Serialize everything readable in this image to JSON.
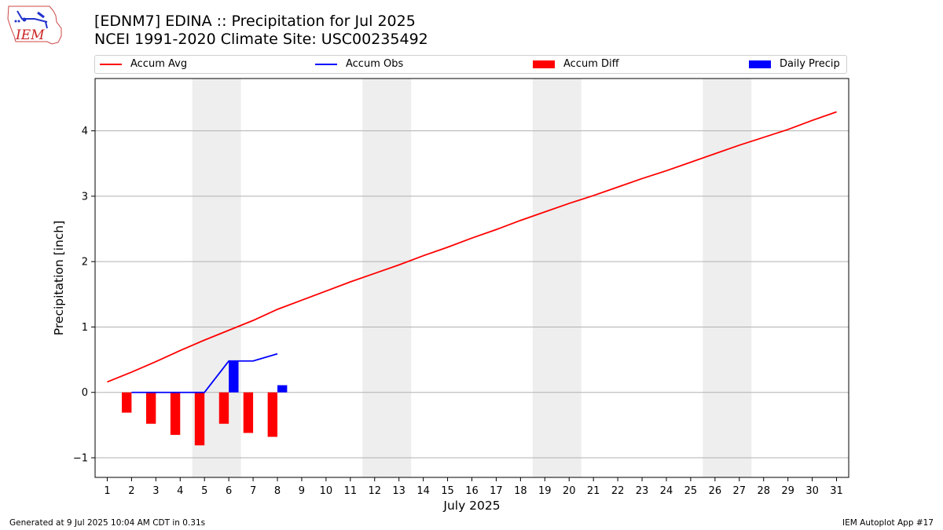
{
  "header": {
    "title_line1": "[EDNM7] EDINA :: Precipitation for Jul 2025",
    "title_line2": "NCEI 1991-2020 Climate Site: USC00235492",
    "logo_text": "IEM"
  },
  "legend": {
    "items": [
      {
        "label": "Accum Avg",
        "color": "#ff0000",
        "kind": "line"
      },
      {
        "label": "Accum Obs",
        "color": "#0000ff",
        "kind": "line"
      },
      {
        "label": "Accum Diff",
        "color": "#ff0000",
        "kind": "box"
      },
      {
        "label": "Daily Precip",
        "color": "#0000ff",
        "kind": "box"
      }
    ]
  },
  "footer": {
    "left": "Generated at 9 Jul 2025 10:04 AM CDT in 0.31s",
    "right": "IEM Autoplot App #17"
  },
  "chart_data": {
    "type": "line",
    "xlabel": "July 2025",
    "ylabel": "Precipitation [inch]",
    "xlim": [
      0.5,
      31.5
    ],
    "ylim": [
      -1.3,
      4.8
    ],
    "yticks": [
      -1,
      0,
      1,
      2,
      3,
      4
    ],
    "ytick_labels": [
      "−1",
      "0",
      "1",
      "2",
      "3",
      "4"
    ],
    "xticks": [
      1,
      2,
      3,
      4,
      5,
      6,
      7,
      8,
      9,
      10,
      11,
      12,
      13,
      14,
      15,
      16,
      17,
      18,
      19,
      20,
      21,
      22,
      23,
      24,
      25,
      26,
      27,
      28,
      29,
      30,
      31
    ],
    "grid": "y",
    "legend_placement": "top",
    "weekend_shading": [
      [
        4.5,
        6.5
      ],
      [
        11.5,
        13.5
      ],
      [
        18.5,
        20.5
      ],
      [
        25.5,
        27.5
      ]
    ],
    "series": [
      {
        "name": "Accum Avg",
        "color": "#ff0000",
        "kind": "line",
        "x": [
          1,
          2,
          3,
          4,
          5,
          6,
          7,
          8,
          9,
          10,
          11,
          12,
          13,
          14,
          15,
          16,
          17,
          18,
          19,
          20,
          21,
          22,
          23,
          24,
          25,
          26,
          27,
          28,
          29,
          30,
          31
        ],
        "values": [
          0.16,
          0.31,
          0.47,
          0.64,
          0.8,
          0.95,
          1.1,
          1.27,
          1.41,
          1.55,
          1.69,
          1.82,
          1.95,
          2.09,
          2.22,
          2.36,
          2.49,
          2.63,
          2.76,
          2.89,
          3.01,
          3.14,
          3.27,
          3.39,
          3.52,
          3.65,
          3.78,
          3.9,
          4.02,
          4.16,
          4.29
        ]
      },
      {
        "name": "Accum Obs",
        "color": "#0000ff",
        "kind": "line",
        "x": [
          2,
          3,
          4,
          5,
          6,
          7,
          8
        ],
        "values": [
          0.0,
          0.0,
          0.0,
          0.0,
          0.48,
          0.48,
          0.59
        ]
      },
      {
        "name": "Accum Diff",
        "color": "#ff0000",
        "kind": "bar",
        "offset": -0.2,
        "width": 0.4,
        "x": [
          2,
          3,
          4,
          5,
          6,
          7,
          8
        ],
        "values": [
          -0.31,
          -0.48,
          -0.65,
          -0.81,
          -0.48,
          -0.62,
          -0.68
        ]
      },
      {
        "name": "Daily Precip",
        "color": "#0000ff",
        "kind": "bar",
        "offset": 0.2,
        "width": 0.4,
        "x": [
          6,
          8
        ],
        "values": [
          0.48,
          0.11
        ]
      }
    ]
  }
}
